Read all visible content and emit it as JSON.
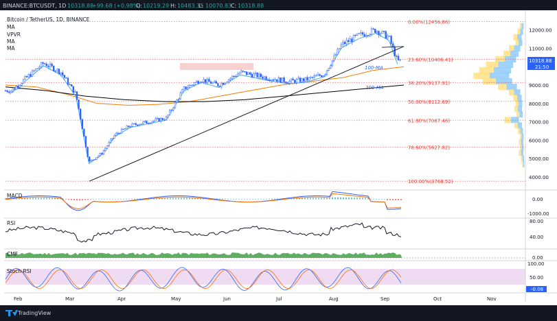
{
  "header": {
    "symbol": "BINANCE:BTCUSDT, 1D",
    "o": "10318.88",
    "change": "+99.68 (+0.98%)",
    "o_label": "O:",
    "o_value": "10219.29",
    "h_label": "H:",
    "h_value": "10483.35",
    "l_label": "L:",
    "l_value": "10070.83",
    "c_label": "C:",
    "c_value": "10318.88"
  },
  "legend": {
    "title": "Bitcoin / TetherUS, 1D, BINANCE",
    "items": [
      "MA",
      "VPVR",
      "MA",
      "MA"
    ]
  },
  "ma_labels": {
    "ma100": "100-MA",
    "ma200": "200-MA"
  },
  "price_badge": {
    "value": "10318.88",
    "timer": "21:50"
  },
  "fib_levels": [
    {
      "label": "0.00%(12456.86)",
      "price": 12456.86
    },
    {
      "label": "23.60%(10406.41)",
      "price": 10406.41
    },
    {
      "label": "38.20%(9137.91)",
      "price": 9137.91
    },
    {
      "label": "50.00%(8112.69)",
      "price": 8112.69
    },
    {
      "label": "61.80%(7087.46)",
      "price": 7087.46
    },
    {
      "label": "78.60%(5627.82)",
      "price": 5627.82
    },
    {
      "label": "100.00%(3768.52)",
      "price": 3768.52
    }
  ],
  "price_axis": [
    "12000.00",
    "11000.00",
    "10000.00",
    "9000.00",
    "8000.00",
    "7000.00",
    "6000.00",
    "5000.00",
    "4000.00"
  ],
  "time_axis": [
    "Feb",
    "Mar",
    "Apr",
    "May",
    "Jun",
    "Jul",
    "Aug",
    "Sep",
    "Oct",
    "Nov"
  ],
  "panes": {
    "macd": {
      "label": "MACD",
      "ticks": [
        "0.00",
        "-1000.00"
      ]
    },
    "rsi": {
      "label": "RSI",
      "ticks": [
        "80.00",
        "40.00"
      ]
    },
    "cmf": {
      "label": "CMF",
      "ticks": [
        "0.00"
      ]
    },
    "stoch": {
      "label": "Stoch RSI",
      "ticks": [
        "100.00",
        "50.00",
        "-0.08"
      ]
    }
  },
  "footer": {
    "brand": "TradingView"
  },
  "colors": {
    "candle": "#2962ff",
    "ma_short": "#3fa9f5",
    "ma_100": "#f57c00",
    "ma_200": "#000000",
    "fib": "#e53935",
    "macd_line": "#2962ff",
    "signal_line": "#ff6d00",
    "cmf": "#43a047",
    "stoch_bg": "#e1bee7"
  },
  "chart_data": {
    "type": "candlestick",
    "title": "Bitcoin / TetherUS, 1D, BINANCE",
    "xlabel": "",
    "ylabel": "",
    "ylim": [
      3500,
      12700
    ],
    "x_range": [
      "Jan 2020",
      "Nov 2020"
    ],
    "grid": false,
    "close": [
      {
        "month": "Jan",
        "value": 8700
      },
      {
        "month": "Feb",
        "value": 9400
      },
      {
        "month": "Feb",
        "value": 10200
      },
      {
        "month": "Feb",
        "value": 9700
      },
      {
        "month": "Mar",
        "value": 8500
      },
      {
        "month": "Mar",
        "value": 4800
      },
      {
        "month": "Mar",
        "value": 5300
      },
      {
        "month": "Mar",
        "value": 6300
      },
      {
        "month": "Apr",
        "value": 6800
      },
      {
        "month": "Apr",
        "value": 7000
      },
      {
        "month": "Apr",
        "value": 7200
      },
      {
        "month": "May",
        "value": 8800
      },
      {
        "month": "May",
        "value": 9300
      },
      {
        "month": "May",
        "value": 9000
      },
      {
        "month": "Jun",
        "value": 9700
      },
      {
        "month": "Jun",
        "value": 9400
      },
      {
        "month": "Jul",
        "value": 9200
      },
      {
        "month": "Jul",
        "value": 9300
      },
      {
        "month": "Jul",
        "value": 9600
      },
      {
        "month": "Aug",
        "value": 11200
      },
      {
        "month": "Aug",
        "value": 11700
      },
      {
        "month": "Aug",
        "value": 12000
      },
      {
        "month": "Sep",
        "value": 11600
      },
      {
        "month": "Sep",
        "value": 10300
      }
    ],
    "ma100": [
      9000,
      8900,
      8500,
      8000,
      7900,
      7950,
      8100,
      8400,
      8700,
      9000,
      9200,
      9400,
      9800,
      10000
    ],
    "ma200": [
      8900,
      8700,
      8400,
      8200,
      8100,
      8100,
      8200,
      8400,
      8600,
      8800,
      9000
    ],
    "support_trendline": [
      {
        "month": "Mar",
        "value": 3768.52
      },
      {
        "month": "Sep",
        "value": 11100
      }
    ]
  }
}
